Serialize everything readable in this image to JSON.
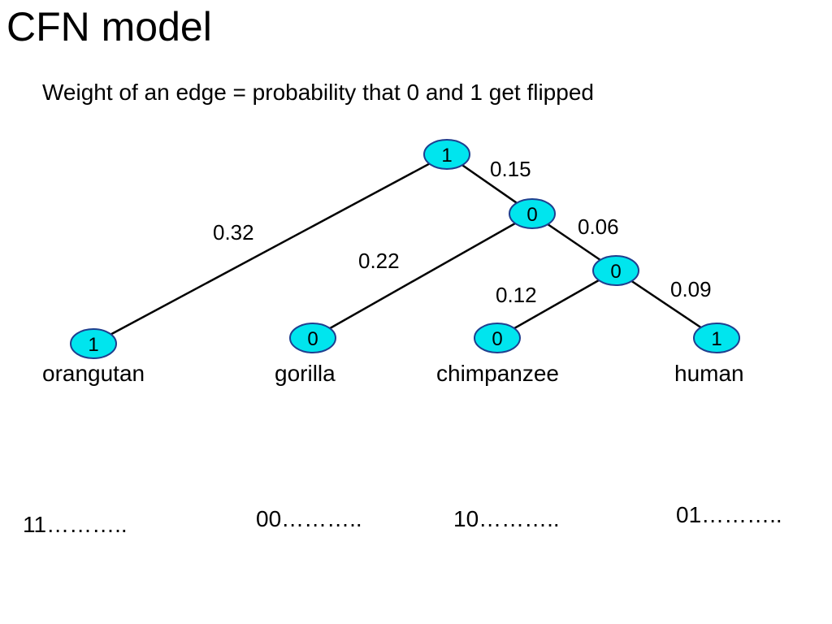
{
  "title": "CFN model",
  "subtitle": "Weight of an edge = probability that 0 and 1 get flipped",
  "colors": {
    "node_fill": "#00e5ee",
    "node_stroke": "#1f3f8f",
    "edge": "#000000"
  },
  "nodes": {
    "root": {
      "label": "1"
    },
    "n1": {
      "label": "0"
    },
    "n2": {
      "label": "0"
    },
    "orangutan": {
      "label": "1"
    },
    "gorilla": {
      "label": "0"
    },
    "chimpanzee": {
      "label": "0"
    },
    "human": {
      "label": "1"
    }
  },
  "edges": {
    "root_n1": {
      "weight": "0.15"
    },
    "root_orangutan": {
      "weight": "0.32"
    },
    "n1_n2": {
      "weight": "0.06"
    },
    "n1_gorilla": {
      "weight": "0.22"
    },
    "n2_chimpanzee": {
      "weight": "0.12"
    },
    "n2_human": {
      "weight": "0.09"
    }
  },
  "leaves": {
    "orangutan": {
      "name": "orangutan",
      "sequence": "11……….."
    },
    "gorilla": {
      "name": "gorilla",
      "sequence": "00……….."
    },
    "chimpanzee": {
      "name": "chimpanzee",
      "sequence": "10……….."
    },
    "human": {
      "name": "human",
      "sequence": "01……….."
    }
  }
}
